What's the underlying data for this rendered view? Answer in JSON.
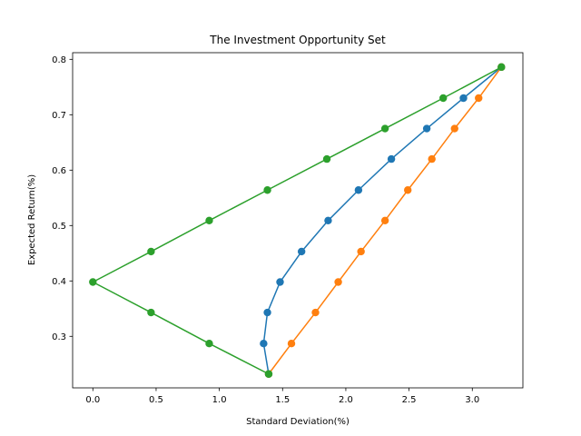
{
  "chart_data": {
    "type": "line",
    "title": "The Investment Opportunity Set",
    "xlabel": "Standard Deviation(%)",
    "ylabel": "Expected Return(%)",
    "xlim": [
      -0.16,
      3.4
    ],
    "ylim": [
      0.207,
      0.812
    ],
    "x_ticks": [
      "0.0",
      "0.5",
      "1.0",
      "1.5",
      "2.0",
      "2.5",
      "3.0"
    ],
    "x_tick_values": [
      0.0,
      0.5,
      1.0,
      1.5,
      2.0,
      2.5,
      3.0
    ],
    "y_ticks": [
      "0.3",
      "0.4",
      "0.5",
      "0.6",
      "0.7",
      "0.8"
    ],
    "y_tick_values": [
      0.3,
      0.4,
      0.5,
      0.6,
      0.7,
      0.8
    ],
    "grid": false,
    "legend": "none",
    "series": [
      {
        "color": "#1f77b4",
        "x": [
          1.39,
          1.35,
          1.38,
          1.48,
          1.65,
          1.86,
          2.1,
          2.36,
          2.64,
          2.93,
          3.23
        ],
        "y": [
          0.232,
          0.287,
          0.343,
          0.398,
          0.453,
          0.509,
          0.564,
          0.62,
          0.675,
          0.73,
          0.786
        ]
      },
      {
        "color": "#ff7f0e",
        "x": [
          1.39,
          1.57,
          1.76,
          1.94,
          2.12,
          2.31,
          2.49,
          2.68,
          2.86,
          3.05,
          3.23
        ],
        "y": [
          0.232,
          0.287,
          0.343,
          0.398,
          0.453,
          0.509,
          0.564,
          0.62,
          0.675,
          0.73,
          0.786
        ]
      },
      {
        "color": "#2ca02c",
        "x": [
          1.39,
          0.92,
          0.46,
          0.0,
          0.46,
          0.92,
          1.38,
          1.85,
          2.31,
          2.77,
          3.23
        ],
        "y": [
          0.232,
          0.287,
          0.343,
          0.398,
          0.453,
          0.509,
          0.564,
          0.62,
          0.675,
          0.73,
          0.786
        ]
      }
    ]
  }
}
